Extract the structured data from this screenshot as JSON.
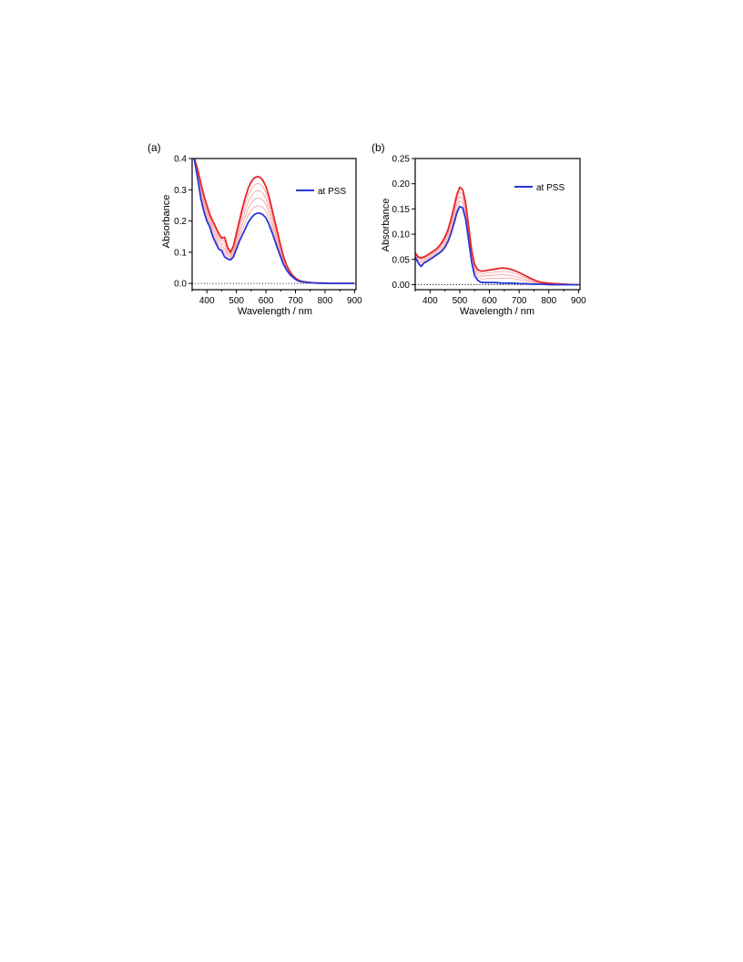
{
  "colors": {
    "initial": "#e8252a",
    "intermediate": "#f3a6a3",
    "pss": "#2a35d6",
    "axis": "#000000"
  },
  "chart_data": [
    {
      "type": "line",
      "panel_label": "(a)",
      "xlabel": "Wavelength  / nm",
      "ylabel": "Absorbance",
      "xlim": [
        350,
        905
      ],
      "ylim": [
        -0.02,
        0.4
      ],
      "xticks": [
        "400",
        "500",
        "600",
        "700",
        "800",
        "900"
      ],
      "xtick_values": [
        400,
        500,
        600,
        700,
        800,
        900
      ],
      "yticks": [
        "0.0",
        "0.1",
        "0.2",
        "0.3",
        "0.4"
      ],
      "ytick_values": [
        0,
        0.1,
        0.2,
        0.3,
        0.4
      ],
      "legend": {
        "label": "at PSS",
        "placement": "top-right"
      },
      "baseline_dotted": true,
      "x": [
        355,
        370,
        380,
        390,
        400,
        410,
        420,
        430,
        440,
        450,
        460,
        470,
        480,
        490,
        500,
        510,
        520,
        530,
        540,
        550,
        560,
        570,
        580,
        590,
        600,
        610,
        620,
        630,
        640,
        650,
        660,
        670,
        680,
        690,
        700,
        710,
        720,
        740,
        760,
        780,
        800,
        820,
        850,
        880,
        900
      ],
      "series": [
        {
          "role": "initial",
          "values": [
            0.41,
            0.36,
            0.32,
            0.28,
            0.25,
            0.22,
            0.2,
            0.18,
            0.16,
            0.145,
            0.148,
            0.115,
            0.1,
            0.12,
            0.16,
            0.2,
            0.24,
            0.275,
            0.305,
            0.325,
            0.338,
            0.342,
            0.34,
            0.33,
            0.31,
            0.28,
            0.24,
            0.2,
            0.16,
            0.12,
            0.085,
            0.058,
            0.04,
            0.026,
            0.017,
            0.011,
            0.007,
            0.004,
            0.002,
            0.001,
            0.001,
            0.0,
            0.0,
            0.0,
            0.0
          ]
        },
        {
          "role": "intermediate",
          "values": [
            0.41,
            0.355,
            0.31,
            0.27,
            0.24,
            0.212,
            0.19,
            0.17,
            0.15,
            0.138,
            0.135,
            0.108,
            0.095,
            0.113,
            0.15,
            0.187,
            0.222,
            0.255,
            0.283,
            0.303,
            0.315,
            0.32,
            0.318,
            0.31,
            0.291,
            0.262,
            0.226,
            0.188,
            0.15,
            0.113,
            0.08,
            0.055,
            0.038,
            0.025,
            0.016,
            0.01,
            0.007,
            0.004,
            0.002,
            0.001,
            0.001,
            0.0,
            0.0,
            0.0,
            0.0
          ]
        },
        {
          "role": "intermediate",
          "values": [
            0.41,
            0.35,
            0.3,
            0.26,
            0.23,
            0.204,
            0.18,
            0.16,
            0.14,
            0.13,
            0.122,
            0.1,
            0.09,
            0.106,
            0.14,
            0.174,
            0.205,
            0.235,
            0.261,
            0.28,
            0.292,
            0.297,
            0.296,
            0.289,
            0.272,
            0.245,
            0.212,
            0.176,
            0.14,
            0.106,
            0.075,
            0.052,
            0.036,
            0.024,
            0.015,
            0.01,
            0.006,
            0.004,
            0.002,
            0.001,
            0.001,
            0.0,
            0.0,
            0.0,
            0.0
          ]
        },
        {
          "role": "intermediate",
          "values": [
            0.41,
            0.345,
            0.29,
            0.25,
            0.22,
            0.196,
            0.17,
            0.15,
            0.13,
            0.122,
            0.11,
            0.093,
            0.085,
            0.099,
            0.13,
            0.161,
            0.189,
            0.215,
            0.24,
            0.257,
            0.268,
            0.273,
            0.272,
            0.266,
            0.252,
            0.228,
            0.197,
            0.164,
            0.13,
            0.099,
            0.07,
            0.049,
            0.034,
            0.023,
            0.014,
            0.009,
            0.006,
            0.003,
            0.002,
            0.001,
            0.001,
            0.0,
            0.0,
            0.0,
            0.0
          ]
        },
        {
          "role": "intermediate",
          "values": [
            0.41,
            0.34,
            0.28,
            0.24,
            0.21,
            0.188,
            0.16,
            0.14,
            0.12,
            0.114,
            0.098,
            0.086,
            0.08,
            0.092,
            0.12,
            0.148,
            0.172,
            0.195,
            0.218,
            0.234,
            0.244,
            0.249,
            0.248,
            0.243,
            0.232,
            0.21,
            0.182,
            0.151,
            0.12,
            0.092,
            0.065,
            0.046,
            0.032,
            0.022,
            0.014,
            0.009,
            0.006,
            0.003,
            0.002,
            0.001,
            0.001,
            0.0,
            0.0,
            0.0,
            0.0
          ]
        },
        {
          "role": "pss",
          "name": "at PSS",
          "values": [
            0.41,
            0.33,
            0.27,
            0.23,
            0.2,
            0.18,
            0.15,
            0.13,
            0.11,
            0.105,
            0.085,
            0.079,
            0.075,
            0.085,
            0.11,
            0.135,
            0.155,
            0.175,
            0.195,
            0.21,
            0.22,
            0.225,
            0.225,
            0.22,
            0.21,
            0.19,
            0.165,
            0.138,
            0.11,
            0.085,
            0.06,
            0.043,
            0.03,
            0.021,
            0.013,
            0.008,
            0.005,
            0.003,
            0.002,
            0.001,
            0.001,
            0.0,
            0.0,
            0.0,
            0.0
          ]
        }
      ]
    },
    {
      "type": "line",
      "panel_label": "(b)",
      "xlabel": "Wavelength  / nm",
      "ylabel": "Absorbance",
      "xlim": [
        350,
        905
      ],
      "ylim": [
        -0.01,
        0.25
      ],
      "xticks": [
        "400",
        "500",
        "600",
        "700",
        "800",
        "900"
      ],
      "xtick_values": [
        400,
        500,
        600,
        700,
        800,
        900
      ],
      "yticks": [
        "0.00",
        "0.05",
        "0.10",
        "0.15",
        "0.20",
        "0.25"
      ],
      "ytick_values": [
        0,
        0.05,
        0.1,
        0.15,
        0.2,
        0.25
      ],
      "legend": {
        "label": "at PSS",
        "placement": "top-right"
      },
      "baseline_dotted": true,
      "x": [
        350,
        360,
        370,
        380,
        390,
        400,
        410,
        420,
        430,
        440,
        450,
        460,
        470,
        480,
        490,
        500,
        510,
        520,
        530,
        540,
        550,
        560,
        570,
        580,
        590,
        600,
        620,
        640,
        660,
        680,
        700,
        720,
        740,
        760,
        780,
        800,
        820,
        850,
        880,
        900
      ],
      "series": [
        {
          "role": "initial",
          "values": [
            0.063,
            0.055,
            0.053,
            0.055,
            0.058,
            0.062,
            0.066,
            0.07,
            0.076,
            0.084,
            0.094,
            0.108,
            0.128,
            0.152,
            0.178,
            0.193,
            0.188,
            0.162,
            0.115,
            0.068,
            0.04,
            0.03,
            0.027,
            0.027,
            0.028,
            0.029,
            0.031,
            0.033,
            0.032,
            0.029,
            0.024,
            0.018,
            0.012,
            0.007,
            0.004,
            0.003,
            0.002,
            0.001,
            0.0,
            0.0
          ]
        },
        {
          "role": "intermediate",
          "values": [
            0.061,
            0.052,
            0.05,
            0.052,
            0.055,
            0.059,
            0.063,
            0.067,
            0.072,
            0.08,
            0.089,
            0.102,
            0.121,
            0.144,
            0.169,
            0.184,
            0.179,
            0.154,
            0.109,
            0.063,
            0.035,
            0.025,
            0.022,
            0.022,
            0.023,
            0.024,
            0.025,
            0.026,
            0.026,
            0.023,
            0.019,
            0.014,
            0.01,
            0.006,
            0.003,
            0.002,
            0.002,
            0.001,
            0.0,
            0.0
          ]
        },
        {
          "role": "intermediate",
          "values": [
            0.059,
            0.049,
            0.046,
            0.049,
            0.052,
            0.056,
            0.06,
            0.064,
            0.069,
            0.076,
            0.084,
            0.096,
            0.113,
            0.136,
            0.16,
            0.175,
            0.17,
            0.145,
            0.102,
            0.058,
            0.03,
            0.02,
            0.017,
            0.017,
            0.018,
            0.018,
            0.019,
            0.02,
            0.019,
            0.017,
            0.014,
            0.011,
            0.007,
            0.004,
            0.003,
            0.002,
            0.001,
            0.001,
            0.0,
            0.0
          ]
        },
        {
          "role": "intermediate",
          "values": [
            0.057,
            0.046,
            0.043,
            0.046,
            0.049,
            0.053,
            0.057,
            0.061,
            0.065,
            0.071,
            0.079,
            0.09,
            0.106,
            0.128,
            0.15,
            0.166,
            0.162,
            0.137,
            0.095,
            0.052,
            0.025,
            0.015,
            0.012,
            0.011,
            0.012,
            0.012,
            0.013,
            0.013,
            0.013,
            0.012,
            0.01,
            0.007,
            0.005,
            0.003,
            0.002,
            0.001,
            0.001,
            0.0,
            0.0,
            0.0
          ]
        },
        {
          "role": "pss",
          "name": "at PSS",
          "values": [
            0.055,
            0.043,
            0.036,
            0.043,
            0.046,
            0.05,
            0.054,
            0.058,
            0.062,
            0.067,
            0.074,
            0.085,
            0.1,
            0.12,
            0.142,
            0.155,
            0.152,
            0.13,
            0.088,
            0.045,
            0.018,
            0.009,
            0.005,
            0.004,
            0.004,
            0.004,
            0.004,
            0.003,
            0.003,
            0.003,
            0.002,
            0.002,
            0.001,
            0.001,
            0.001,
            0.0,
            0.0,
            0.0,
            0.0,
            0.0
          ]
        }
      ]
    }
  ]
}
